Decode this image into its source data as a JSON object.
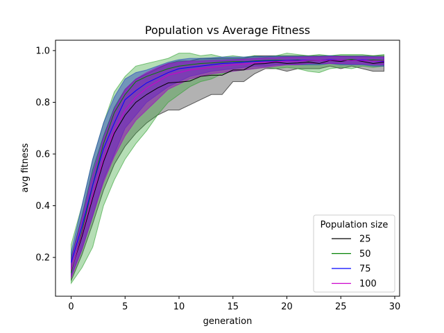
{
  "chart_data": {
    "type": "line",
    "title": "Population vs Average Fitness",
    "xlabel": "generation",
    "ylabel": "avg fitness",
    "xlim": [
      -1.45,
      30.45
    ],
    "ylim": [
      0.05,
      1.04
    ],
    "xticks": [
      0,
      5,
      10,
      15,
      20,
      25,
      30
    ],
    "xtick_labels": [
      "0",
      "5",
      "10",
      "15",
      "20",
      "25",
      "30"
    ],
    "yticks": [
      0.2,
      0.4,
      0.6,
      0.8,
      1.0
    ],
    "ytick_labels": [
      "0.2",
      "0.4",
      "0.6",
      "0.8",
      "1.0"
    ],
    "grid": false,
    "legend": {
      "title": "Population size",
      "position": "lower-right"
    },
    "x": [
      0,
      1,
      2,
      3,
      4,
      5,
      6,
      7,
      8,
      9,
      10,
      11,
      12,
      13,
      14,
      15,
      16,
      17,
      18,
      19,
      20,
      21,
      22,
      23,
      24,
      25,
      26,
      27,
      28,
      29
    ],
    "series": [
      {
        "name": "25",
        "color": "#000000",
        "band_color": "#000000",
        "band_opacity": 0.3,
        "mean": [
          0.15,
          0.28,
          0.43,
          0.57,
          0.68,
          0.75,
          0.8,
          0.83,
          0.855,
          0.875,
          0.878,
          0.882,
          0.9,
          0.905,
          0.905,
          0.925,
          0.925,
          0.948,
          0.95,
          0.955,
          0.95,
          0.952,
          0.955,
          0.95,
          0.962,
          0.958,
          0.965,
          0.958,
          0.95,
          0.955
        ],
        "lower": [
          0.11,
          0.21,
          0.33,
          0.46,
          0.56,
          0.63,
          0.68,
          0.72,
          0.75,
          0.77,
          0.77,
          0.79,
          0.81,
          0.83,
          0.83,
          0.88,
          0.88,
          0.91,
          0.93,
          0.93,
          0.92,
          0.93,
          0.93,
          0.93,
          0.94,
          0.93,
          0.94,
          0.93,
          0.92,
          0.92
        ],
        "upper": [
          0.2,
          0.36,
          0.54,
          0.67,
          0.78,
          0.85,
          0.89,
          0.91,
          0.93,
          0.95,
          0.96,
          0.96,
          0.97,
          0.97,
          0.97,
          0.97,
          0.97,
          0.98,
          0.98,
          0.98,
          0.98,
          0.98,
          0.98,
          0.98,
          0.98,
          0.98,
          0.98,
          0.98,
          0.98,
          0.98
        ]
      },
      {
        "name": "50",
        "color": "#008000",
        "band_color": "#2ca02c",
        "band_opacity": 0.35,
        "mean": [
          0.14,
          0.3,
          0.48,
          0.64,
          0.76,
          0.83,
          0.88,
          0.9,
          0.915,
          0.93,
          0.94,
          0.945,
          0.95,
          0.952,
          0.955,
          0.958,
          0.957,
          0.96,
          0.962,
          0.963,
          0.962,
          0.964,
          0.96,
          0.962,
          0.965,
          0.963,
          0.966,
          0.962,
          0.964,
          0.962
        ],
        "lower": [
          0.1,
          0.16,
          0.24,
          0.4,
          0.5,
          0.58,
          0.64,
          0.69,
          0.75,
          0.8,
          0.83,
          0.86,
          0.88,
          0.89,
          0.91,
          0.92,
          0.925,
          0.93,
          0.935,
          0.93,
          0.935,
          0.93,
          0.92,
          0.915,
          0.93,
          0.935,
          0.93,
          0.94,
          0.935,
          0.94
        ],
        "upper": [
          0.25,
          0.4,
          0.58,
          0.72,
          0.84,
          0.9,
          0.94,
          0.95,
          0.96,
          0.97,
          0.99,
          0.99,
          0.98,
          0.985,
          0.975,
          0.98,
          0.975,
          0.98,
          0.975,
          0.98,
          0.99,
          0.985,
          0.98,
          0.985,
          0.98,
          0.985,
          0.985,
          0.985,
          0.98,
          0.985
        ]
      },
      {
        "name": "75",
        "color": "#0000ff",
        "band_color": "#1f3fbf",
        "band_opacity": 0.45,
        "mean": [
          0.18,
          0.32,
          0.48,
          0.62,
          0.72,
          0.81,
          0.845,
          0.875,
          0.895,
          0.915,
          0.93,
          0.935,
          0.94,
          0.945,
          0.95,
          0.952,
          0.955,
          0.958,
          0.96,
          0.96,
          0.962,
          0.962,
          0.963,
          0.962,
          0.965,
          0.963,
          0.962,
          0.964,
          0.96,
          0.958
        ],
        "lower": [
          0.13,
          0.23,
          0.36,
          0.5,
          0.6,
          0.7,
          0.75,
          0.8,
          0.83,
          0.86,
          0.88,
          0.9,
          0.91,
          0.92,
          0.925,
          0.93,
          0.935,
          0.94,
          0.94,
          0.945,
          0.945,
          0.945,
          0.945,
          0.945,
          0.95,
          0.945,
          0.945,
          0.945,
          0.94,
          0.94
        ],
        "upper": [
          0.22,
          0.4,
          0.58,
          0.72,
          0.82,
          0.89,
          0.915,
          0.925,
          0.94,
          0.955,
          0.965,
          0.97,
          0.97,
          0.972,
          0.975,
          0.975,
          0.975,
          0.977,
          0.977,
          0.978,
          0.978,
          0.978,
          0.978,
          0.978,
          0.98,
          0.978,
          0.978,
          0.978,
          0.977,
          0.976
        ]
      },
      {
        "name": "100",
        "color": "#cc00cc",
        "band_color": "#a000c8",
        "band_opacity": 0.5,
        "mean": [
          0.15,
          0.29,
          0.44,
          0.58,
          0.69,
          0.77,
          0.82,
          0.855,
          0.88,
          0.905,
          0.915,
          0.925,
          0.93,
          0.935,
          0.94,
          0.945,
          0.948,
          0.952,
          0.955,
          0.958,
          0.96,
          0.96,
          0.962,
          0.962,
          0.963,
          0.963,
          0.962,
          0.962,
          0.96,
          0.96
        ],
        "lower": [
          0.12,
          0.23,
          0.36,
          0.49,
          0.59,
          0.67,
          0.73,
          0.77,
          0.81,
          0.85,
          0.87,
          0.89,
          0.9,
          0.91,
          0.915,
          0.92,
          0.925,
          0.93,
          0.935,
          0.94,
          0.945,
          0.945,
          0.95,
          0.95,
          0.95,
          0.95,
          0.948,
          0.948,
          0.945,
          0.945
        ],
        "upper": [
          0.19,
          0.35,
          0.52,
          0.66,
          0.77,
          0.85,
          0.89,
          0.915,
          0.935,
          0.95,
          0.955,
          0.96,
          0.96,
          0.962,
          0.963,
          0.965,
          0.967,
          0.97,
          0.972,
          0.973,
          0.975,
          0.975,
          0.976,
          0.976,
          0.977,
          0.977,
          0.976,
          0.976,
          0.975,
          0.975
        ]
      }
    ]
  }
}
